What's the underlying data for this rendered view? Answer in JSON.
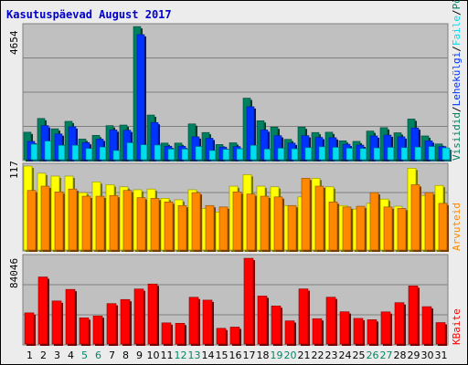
{
  "title": "Kasutuspäevad August 2017",
  "colors": {
    "background": "#ececec",
    "panel": "#c0c0c0",
    "title": "#0000cc",
    "grid": "#808080",
    "weekend_label": "#008866",
    "weekday_label": "#000000",
    "visits": "#008060",
    "pages": "#0033ff",
    "files": "#00ddee",
    "hits": "#ffff00",
    "sites": "#ff8800",
    "kbytes": "#ff0000"
  },
  "chart_data": [
    {
      "type": "bar",
      "id": "top-panel",
      "ylabel": "4654",
      "ylim": [
        0,
        4654
      ],
      "grid": true,
      "legend_placement": "right-vertical",
      "categories": [
        "1",
        "2",
        "3",
        "4",
        "5",
        "6",
        "7",
        "8",
        "9",
        "10",
        "11",
        "12",
        "13",
        "14",
        "15",
        "16",
        "17",
        "18",
        "19",
        "20",
        "21",
        "22",
        "23",
        "24",
        "25",
        "26",
        "27",
        "28",
        "29",
        "30",
        "31"
      ],
      "weekend_days": [
        "5",
        "6",
        "12",
        "13",
        "19",
        "20",
        "26",
        "27"
      ],
      "series": [
        {
          "name": "Visiidid",
          "color": "#008060",
          "values": [
            960,
            1440,
            1080,
            1340,
            720,
            850,
            1190,
            1210,
            4650,
            1560,
            580,
            580,
            1250,
            950,
            530,
            590,
            2150,
            1360,
            1140,
            710,
            1140,
            950,
            960,
            660,
            640,
            1000,
            1120,
            940,
            1420,
            830,
            550
          ]
        },
        {
          "name": "Lehekülgi",
          "color": "#0033ff",
          "values": [
            640,
            1190,
            900,
            1150,
            600,
            720,
            1040,
            1030,
            4370,
            1300,
            470,
            470,
            800,
            750,
            440,
            460,
            1850,
            1040,
            840,
            580,
            840,
            780,
            770,
            540,
            510,
            830,
            860,
            800,
            1110,
            660,
            460
          ]
        },
        {
          "name": "Faile",
          "color": "#00ddee",
          "values": [
            540,
            650,
            500,
            500,
            390,
            440,
            320,
            590,
            520,
            510,
            370,
            370,
            460,
            320,
            360,
            380,
            500,
            370,
            400,
            380,
            420,
            450,
            430,
            400,
            390,
            410,
            430,
            420,
            440,
            460,
            410
          ]
        }
      ],
      "legend": [
        "Visiidid",
        "/",
        "Lehekülgi",
        "/",
        "Faile",
        "/",
        "Pöördumisi"
      ]
    },
    {
      "type": "bar",
      "id": "middle-panel",
      "ylabel": "117",
      "ylim": [
        0,
        117
      ],
      "grid": true,
      "series": [
        {
          "name": "Pöördumisi",
          "color": "#ffff00",
          "values": [
            117,
            107,
            103,
            103,
            80,
            95,
            91,
            88,
            84,
            85,
            72,
            70,
            84,
            58,
            53,
            89,
            105,
            89,
            88,
            62,
            74,
            100,
            88,
            62,
            57,
            65,
            71,
            61,
            114,
            76,
            90
          ]
        },
        {
          "name": "Arvuteid",
          "color": "#ff8800",
          "values": [
            83,
            89,
            81,
            85,
            75,
            75,
            76,
            83,
            73,
            72,
            67,
            62,
            80,
            62,
            60,
            81,
            78,
            75,
            74,
            62,
            100,
            89,
            67,
            60,
            61,
            80,
            60,
            58,
            91,
            80,
            65
          ]
        }
      ],
      "legend": [
        "Arvuteid"
      ]
    },
    {
      "type": "bar",
      "id": "bottom-panel",
      "ylabel": "84046",
      "ylim": [
        0,
        84046
      ],
      "grid": true,
      "series": [
        {
          "name": "KBaite",
          "color": "#ff0000",
          "values": [
            30500,
            65700,
            42200,
            53500,
            25600,
            27500,
            39600,
            43600,
            53900,
            58800,
            20700,
            20300,
            45800,
            43000,
            15400,
            16600,
            84000,
            47000,
            37300,
            22700,
            54000,
            24800,
            45900,
            31600,
            25100,
            23800,
            31500,
            40500,
            56900,
            36600,
            21000
          ]
        }
      ],
      "legend": [
        "KBaite"
      ]
    }
  ]
}
